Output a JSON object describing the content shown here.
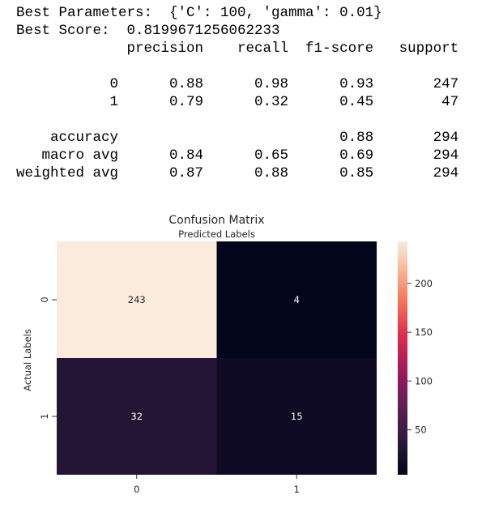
{
  "console": {
    "best_params": "Best Parameters:  {'C': 100, 'gamma': 0.01}",
    "best_score": "Best Score:  0.8199671256062233",
    "report": {
      "headers": [
        "precision",
        "recall",
        "f1-score",
        "support"
      ],
      "rows": [
        {
          "label": "0",
          "precision": "0.88",
          "recall": "0.98",
          "f1": "0.93",
          "support": "247"
        },
        {
          "label": "1",
          "precision": "0.79",
          "recall": "0.32",
          "f1": "0.45",
          "support": "47"
        },
        null,
        {
          "label": "accuracy",
          "precision": "",
          "recall": "",
          "f1": "0.88",
          "support": "294"
        },
        {
          "label": "macro avg",
          "precision": "0.84",
          "recall": "0.65",
          "f1": "0.69",
          "support": "294"
        },
        {
          "label": "weighted avg",
          "precision": "0.87",
          "recall": "0.88",
          "f1": "0.85",
          "support": "294"
        }
      ]
    }
  },
  "chart_data": {
    "type": "heatmap",
    "title": "Confusion Matrix",
    "xlabel": "Predicted Labels",
    "ylabel": "Actual Labels",
    "x_categories": [
      "0",
      "1"
    ],
    "y_categories": [
      "0",
      "1"
    ],
    "values": [
      [
        243,
        4
      ],
      [
        32,
        15
      ]
    ],
    "colormap": "rocket",
    "colorbar": {
      "range": [
        4,
        243
      ],
      "ticks": [
        50,
        100,
        150,
        200
      ]
    },
    "xlabel_position": "top"
  }
}
